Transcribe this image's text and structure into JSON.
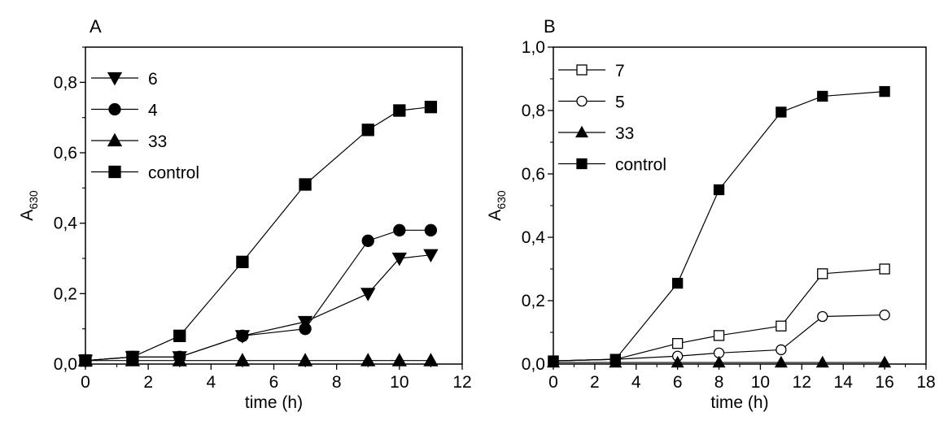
{
  "chart_data": [
    {
      "panel": "A",
      "type": "line",
      "xlabel": "time (h)",
      "ylabel": "A",
      "ylabel_sub": "630",
      "xlim": [
        0,
        12
      ],
      "ylim": [
        0,
        0.9
      ],
      "xticks": [
        0,
        2,
        4,
        6,
        8,
        10,
        12
      ],
      "xtick_labels": [
        "0",
        "2",
        "4",
        "6",
        "8",
        "10",
        "12"
      ],
      "yticks": [
        0,
        0.2,
        0.4,
        0.6,
        0.8
      ],
      "ytick_labels": [
        "0,0",
        "0,2",
        "0,4",
        "0,6",
        "0,8"
      ],
      "grid": false,
      "legend_position": "top-left",
      "series": [
        {
          "name": "6",
          "marker": "triangle-down",
          "fill": "filled",
          "x": [
            0,
            1.5,
            3,
            5,
            7,
            9,
            10,
            11
          ],
          "y": [
            0.01,
            0.02,
            0.02,
            0.08,
            0.12,
            0.2,
            0.3,
            0.31
          ]
        },
        {
          "name": "4",
          "marker": "circle",
          "fill": "filled",
          "x": [
            0,
            1.5,
            3,
            5,
            7,
            9,
            10,
            11
          ],
          "y": [
            0.01,
            0.02,
            0.02,
            0.08,
            0.1,
            0.35,
            0.38,
            0.38
          ]
        },
        {
          "name": "33",
          "marker": "triangle-up",
          "fill": "filled",
          "x": [
            0,
            1.5,
            3,
            5,
            7,
            9,
            10,
            11
          ],
          "y": [
            0.01,
            0.01,
            0.01,
            0.01,
            0.01,
            0.01,
            0.01,
            0.01
          ]
        },
        {
          "name": "control",
          "marker": "square",
          "fill": "filled",
          "x": [
            0,
            1.5,
            3,
            5,
            7,
            9,
            10,
            11
          ],
          "y": [
            0.01,
            0.02,
            0.08,
            0.29,
            0.51,
            0.665,
            0.72,
            0.73
          ]
        }
      ]
    },
    {
      "panel": "B",
      "type": "line",
      "xlabel": "time (h)",
      "ylabel": "A",
      "ylabel_sub": "630",
      "xlim": [
        0,
        18
      ],
      "ylim": [
        0,
        1.0
      ],
      "xticks": [
        0,
        2,
        4,
        6,
        8,
        10,
        12,
        14,
        16,
        18
      ],
      "xtick_labels": [
        "0",
        "2",
        "4",
        "6",
        "8",
        "10",
        "12",
        "14",
        "16",
        "18"
      ],
      "yticks": [
        0,
        0.2,
        0.4,
        0.6,
        0.8,
        1.0
      ],
      "ytick_labels": [
        "0,0",
        "0,2",
        "0,4",
        "0,6",
        "0,8",
        "1,0"
      ],
      "grid": false,
      "legend_position": "top-left",
      "series": [
        {
          "name": "7",
          "marker": "square",
          "fill": "open",
          "x": [
            0,
            3,
            6,
            8,
            11,
            13,
            16
          ],
          "y": [
            0.01,
            0.015,
            0.065,
            0.09,
            0.12,
            0.285,
            0.3
          ]
        },
        {
          "name": "5",
          "marker": "circle",
          "fill": "open",
          "x": [
            0,
            3,
            6,
            8,
            11,
            13,
            16
          ],
          "y": [
            0.01,
            0.015,
            0.025,
            0.035,
            0.045,
            0.15,
            0.155
          ]
        },
        {
          "name": "33",
          "marker": "triangle-up",
          "fill": "filled",
          "x": [
            0,
            3,
            6,
            8,
            11,
            13,
            16
          ],
          "y": [
            0.005,
            0.005,
            0.005,
            0.005,
            0.005,
            0.005,
            0.005
          ]
        },
        {
          "name": "control",
          "marker": "square",
          "fill": "filled",
          "x": [
            0,
            3,
            6,
            8,
            11,
            13,
            16
          ],
          "y": [
            0.01,
            0.015,
            0.255,
            0.55,
            0.795,
            0.845,
            0.86
          ]
        }
      ]
    }
  ]
}
